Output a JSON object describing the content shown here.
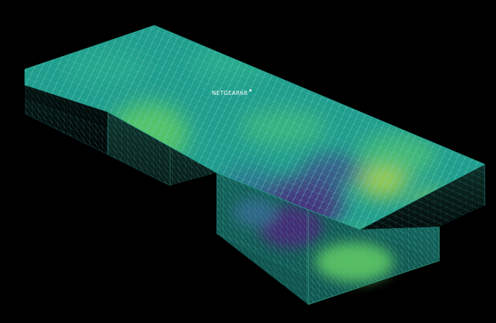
{
  "scene": {
    "node_label": "NETGEAR68",
    "node_icon": "access-point-marker-icon",
    "colormap": [
      "#440154",
      "#3b528b",
      "#21918c",
      "#1fa187",
      "#5ec962",
      "#b5de2b",
      "#fde725"
    ],
    "background": "#000000",
    "wireframe_colors": {
      "top_outline": "#2aa89a",
      "side_outline": "#1f7f78"
    }
  }
}
